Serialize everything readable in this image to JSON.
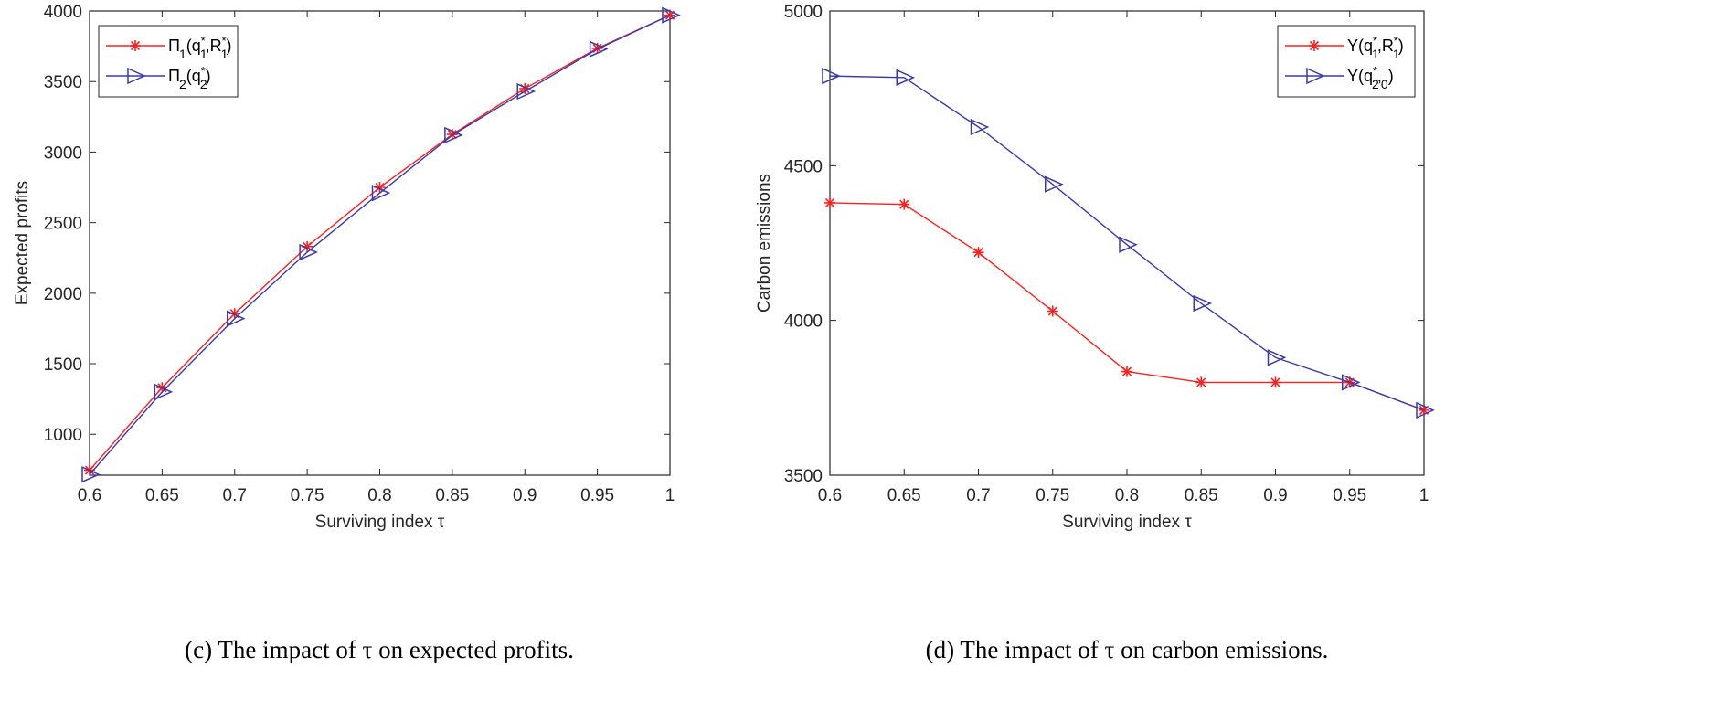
{
  "chart_data": [
    {
      "type": "line",
      "caption": "(c) The impact of τ on expected profits.",
      "xlabel": "Surviving index τ",
      "ylabel": "Expected profits",
      "xlim": [
        0.6,
        1
      ],
      "ylim": [
        710,
        4000
      ],
      "xticks": [
        "0.6",
        "0.65",
        "0.7",
        "0.75",
        "0.8",
        "0.85",
        "0.9",
        "0.95",
        "1"
      ],
      "yticks": [
        "1000",
        "1500",
        "2000",
        "2500",
        "3000",
        "3500",
        "4000"
      ],
      "legend_position": "top-left",
      "x": [
        0.6,
        0.65,
        0.7,
        0.75,
        0.8,
        0.85,
        0.9,
        0.95,
        1
      ],
      "series": [
        {
          "name": "Π1(q1*,R1*)",
          "color": "#ff2020",
          "marker": "asterisk",
          "values": [
            745,
            1330,
            1855,
            2330,
            2750,
            3125,
            3450,
            3735,
            3970
          ]
        },
        {
          "name": "Π2(q2*)",
          "color": "#3a3aa8",
          "marker": "triangle-right",
          "values": [
            715,
            1300,
            1820,
            2290,
            2710,
            3120,
            3430,
            3730,
            3970
          ]
        }
      ]
    },
    {
      "type": "line",
      "caption": "(d) The impact of τ on carbon emissions.",
      "xlabel": "Surviving index τ",
      "ylabel": "Carbon emissions",
      "xlim": [
        0.6,
        1
      ],
      "ylim": [
        3500,
        5000
      ],
      "xticks": [
        "0.6",
        "0.65",
        "0.7",
        "0.75",
        "0.8",
        "0.85",
        "0.9",
        "0.95",
        "1"
      ],
      "yticks": [
        "3500",
        "4000",
        "4500",
        "5000"
      ],
      "legend_position": "top-right",
      "x": [
        0.6,
        0.65,
        0.7,
        0.75,
        0.8,
        0.85,
        0.9,
        0.95,
        1
      ],
      "series": [
        {
          "name": "Y(q1*,R1*)",
          "color": "#ff2020",
          "marker": "asterisk",
          "values": [
            4380,
            4375,
            4220,
            4030,
            3835,
            3800,
            3800,
            3800,
            3710
          ]
        },
        {
          "name": "Y(q2*,0)",
          "color": "#3a3aa8",
          "marker": "triangle-right",
          "values": [
            4790,
            4785,
            4625,
            4440,
            4245,
            4055,
            3880,
            3800,
            3710
          ]
        }
      ]
    }
  ]
}
